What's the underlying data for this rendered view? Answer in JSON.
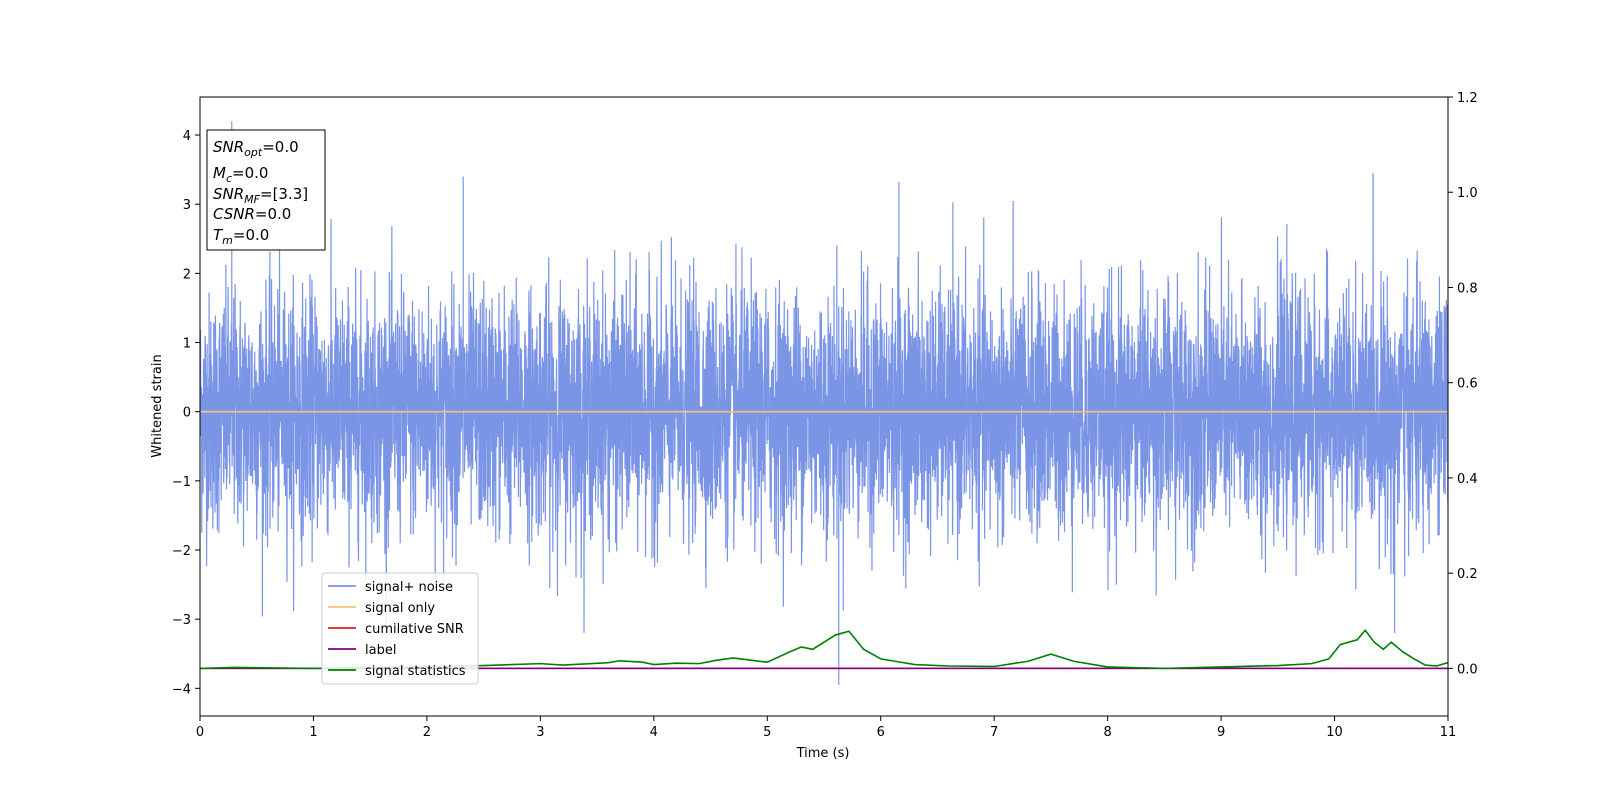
{
  "chart_data": {
    "type": "line",
    "xlabel": "Time (s)",
    "ylabel": "Whitened strain",
    "xlim": [
      0,
      11
    ],
    "ylim": [
      -4.4,
      4.55
    ],
    "y2lim": [
      -0.1,
      1.2
    ],
    "x_ticks": [
      "0",
      "1",
      "2",
      "3",
      "4",
      "5",
      "6",
      "7",
      "8",
      "9",
      "10",
      "11"
    ],
    "y_ticks": [
      "−4",
      "−3",
      "−2",
      "−1",
      "0",
      "1",
      "2",
      "3",
      "4"
    ],
    "y2_ticks": [
      "0.0",
      "0.2",
      "0.4",
      "0.6",
      "0.8",
      "1.0",
      "1.2"
    ],
    "grid": false,
    "legend_position": "lower-left",
    "info_box": {
      "snr_opt": {
        "base": "SNR",
        "sub": "opt",
        "value": "=0.0"
      },
      "mc": {
        "base": "M",
        "sub": "c",
        "value": "=0.0"
      },
      "snr_mf": {
        "base": "SNR",
        "sub": "MF",
        "value": "=[3.3]"
      },
      "csnr": {
        "base": "CSNR",
        "sub": "",
        "value": "=0.0"
      },
      "tm": {
        "base": "T",
        "sub": "m",
        "value": "=0.0"
      }
    },
    "series": [
      {
        "name": "signal+ noise",
        "color": "#7a94e6",
        "axis": "left",
        "noise_sigma": 0.85,
        "noise_extreme": 4.2,
        "extremes": [
          [
            0.28,
            4.2
          ],
          [
            2.32,
            3.4
          ],
          [
            5.63,
            -3.95
          ],
          [
            6.16,
            3.32
          ],
          [
            10.53,
            -3.2
          ]
        ]
      },
      {
        "name": "signal only",
        "color": "#f5c27a",
        "axis": "left",
        "x": [
          0,
          11
        ],
        "y": [
          0,
          0
        ]
      },
      {
        "name": "cumilative SNR",
        "color": "#e31a1c",
        "axis": "right",
        "x": [
          0,
          11
        ],
        "y": [
          0,
          0
        ]
      },
      {
        "name": "label",
        "color": "#800080",
        "axis": "right",
        "x": [
          0,
          11
        ],
        "y": [
          0,
          0
        ]
      },
      {
        "name": "signal statistics",
        "color": "#008000",
        "axis": "right",
        "x": [
          0,
          0.3,
          1.0,
          2.0,
          2.5,
          3.0,
          3.2,
          3.6,
          3.7,
          3.9,
          4.0,
          4.2,
          4.4,
          4.55,
          4.7,
          4.9,
          5.0,
          5.2,
          5.3,
          5.4,
          5.5,
          5.6,
          5.72,
          5.85,
          6.0,
          6.3,
          6.6,
          7.0,
          7.3,
          7.5,
          7.7,
          8.0,
          8.5,
          9.0,
          9.5,
          9.8,
          9.95,
          10.05,
          10.2,
          10.27,
          10.35,
          10.43,
          10.5,
          10.6,
          10.7,
          10.8,
          10.9,
          11
        ],
        "y": [
          0.0,
          0.002,
          0.0,
          0.003,
          0.006,
          0.01,
          0.007,
          0.012,
          0.016,
          0.013,
          0.008,
          0.011,
          0.01,
          0.017,
          0.022,
          0.016,
          0.013,
          0.035,
          0.045,
          0.04,
          0.055,
          0.07,
          0.078,
          0.04,
          0.02,
          0.008,
          0.005,
          0.004,
          0.015,
          0.03,
          0.015,
          0.003,
          0.0,
          0.003,
          0.006,
          0.01,
          0.02,
          0.05,
          0.06,
          0.08,
          0.055,
          0.04,
          0.055,
          0.035,
          0.02,
          0.007,
          0.005,
          0.012
        ]
      }
    ]
  }
}
